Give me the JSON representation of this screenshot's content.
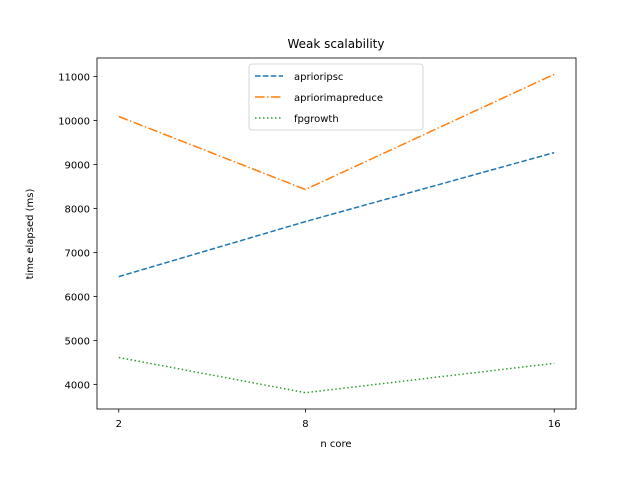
{
  "chart_data": {
    "type": "line",
    "title": "Weak scalability",
    "xlabel": "n core",
    "ylabel": "time elapsed (ms)",
    "x": [
      2,
      8,
      16
    ],
    "x_tick_labels": [
      "2",
      "8",
      "16"
    ],
    "y_ticks": [
      4000,
      5000,
      6000,
      7000,
      8000,
      9000,
      10000,
      11000
    ],
    "y_tick_labels": [
      "4000",
      "5000",
      "6000",
      "7000",
      "8000",
      "9000",
      "10000",
      "11000"
    ],
    "xlim": [
      1.3,
      16.7
    ],
    "ylim": [
      3440,
      11420
    ],
    "grid": false,
    "legend_position": "top-center",
    "series": [
      {
        "name": "aprioripsc",
        "values": [
          6450,
          7700,
          9270
        ],
        "color": "#1f77b4",
        "line_style": "dashed"
      },
      {
        "name": "apriorimapreduce",
        "values": [
          10090,
          8430,
          11050
        ],
        "color": "#ff7f0e",
        "line_style": "dashdot"
      },
      {
        "name": "fpgrowth",
        "values": [
          4610,
          3810,
          4480
        ],
        "color": "#2ca02c",
        "line_style": "dotted"
      }
    ]
  }
}
